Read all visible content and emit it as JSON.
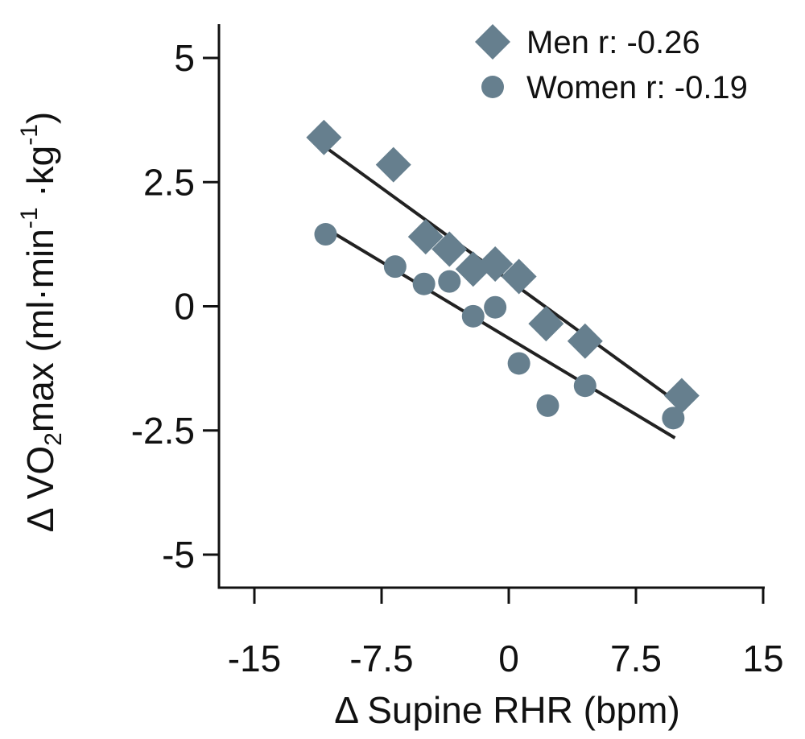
{
  "chart_data": {
    "type": "scatter",
    "xlabel": "Δ Supine RHR (bpm)",
    "ylabel": {
      "prefix": "Δ  VO",
      "sub": "2",
      "main": "max (ml·min",
      "sup1": "-1",
      "mid": " ·kg",
      "sup2": "-1",
      "suffix": ")"
    },
    "xlim": [
      -15,
      15
    ],
    "ylim": [
      -5,
      5
    ],
    "x_ticks": [
      -15,
      -7.5,
      0,
      7.5,
      15
    ],
    "x_tick_labels": [
      "-15",
      "-7.5",
      "0",
      "7.5",
      "15"
    ],
    "y_ticks": [
      -5,
      -2.5,
      0,
      2.5,
      5
    ],
    "y_tick_labels": [
      "-5",
      "-2.5",
      "0",
      "2.5",
      "5"
    ],
    "legend_position": "top-right",
    "marker_color": "#667f8e",
    "line_color": "#222222",
    "series": [
      {
        "name": "Men r: -0.26",
        "marker": "diamond",
        "points": [
          [
            -10.9,
            3.4
          ],
          [
            -6.8,
            2.85
          ],
          [
            -4.9,
            1.4
          ],
          [
            -3.5,
            1.15
          ],
          [
            -2.1,
            0.75
          ],
          [
            -0.8,
            0.85
          ],
          [
            0.6,
            0.6
          ],
          [
            2.2,
            -0.35
          ],
          [
            4.5,
            -0.7
          ],
          [
            10.2,
            -1.8
          ]
        ],
        "fit": {
          "x": [
            -10.8,
            10.2
          ],
          "y": [
            3.2,
            -2.0
          ]
        }
      },
      {
        "name": "Women r: -0.19",
        "marker": "circle",
        "points": [
          [
            -10.8,
            1.45
          ],
          [
            -6.7,
            0.8
          ],
          [
            -5.0,
            0.45
          ],
          [
            -3.5,
            0.5
          ],
          [
            -2.1,
            -0.2
          ],
          [
            -0.8,
            -0.02
          ],
          [
            0.6,
            -1.15
          ],
          [
            2.3,
            -2.0
          ],
          [
            4.5,
            -1.6
          ],
          [
            9.7,
            -2.25
          ]
        ],
        "fit": {
          "x": [
            -10.7,
            9.8
          ],
          "y": [
            1.55,
            -2.65
          ]
        }
      }
    ]
  }
}
